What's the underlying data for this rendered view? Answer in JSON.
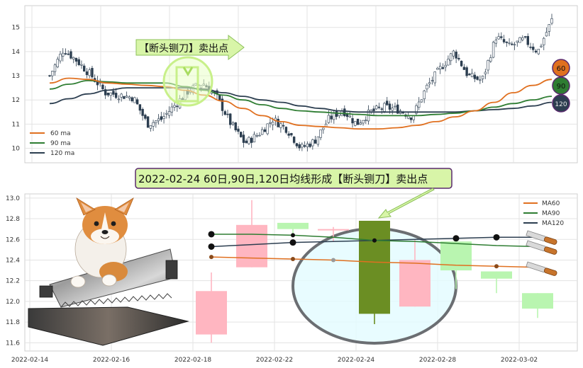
{
  "chart_data": [
    {
      "type": "candlestick",
      "panel": "overview",
      "yticks": [
        10,
        11,
        12,
        13,
        14,
        15
      ],
      "ylim": [
        9.4,
        15.9
      ],
      "grid": true,
      "legend_placement": "bottom-left",
      "series": [
        {
          "name": "60 ma",
          "color": "#e07020"
        },
        {
          "name": "90 ma",
          "color": "#2e7d32"
        },
        {
          "name": "120 ma",
          "color": "#2c3e50"
        }
      ],
      "ma_curves": {
        "ma60": [
          12.7,
          12.9,
          12.85,
          12.7,
          12.65,
          12.6,
          12.55,
          12.4,
          12.2,
          11.95,
          11.65,
          11.35,
          11.1,
          10.95,
          10.9,
          10.85,
          10.8,
          10.8,
          10.85,
          10.95,
          11.1,
          11.3,
          11.55,
          11.9,
          12.3,
          12.6,
          12.85
        ],
        "ma90": [
          12.45,
          12.65,
          12.8,
          12.75,
          12.7,
          12.7,
          12.7,
          12.55,
          12.4,
          12.2,
          12.0,
          11.8,
          11.65,
          11.55,
          11.5,
          11.45,
          11.4,
          11.35,
          11.35,
          11.35,
          11.4,
          11.45,
          11.55,
          11.7,
          11.85,
          12.0,
          12.15
        ],
        "ma120": [
          11.85,
          12.05,
          12.25,
          12.4,
          12.5,
          12.5,
          12.5,
          12.5,
          12.45,
          12.3,
          12.15,
          12.0,
          11.9,
          11.75,
          11.65,
          11.55,
          11.5,
          11.5,
          11.5,
          11.5,
          11.5,
          11.5,
          11.55,
          11.6,
          11.65,
          11.75,
          11.9
        ]
      },
      "close_path": [
        13.0,
        14.1,
        13.6,
        13.0,
        12.3,
        12.2,
        12.1,
        11.0,
        11.2,
        11.8,
        12.4,
        12.7,
        12.1,
        11.0,
        10.2,
        10.6,
        11.2,
        10.8,
        10.0,
        10.3,
        11.2,
        11.6,
        11.0,
        11.5,
        11.7,
        11.6,
        11.3,
        12.5,
        13.3,
        14.0,
        13.0,
        12.8,
        14.6,
        14.2,
        14.5,
        14.0,
        15.3
      ],
      "ma_badges": [
        "60",
        "90",
        "120"
      ],
      "annotation": "【断头铡刀】卖出点"
    },
    {
      "type": "candlestick",
      "panel": "detail",
      "title": "2022-02-24 60日,90日,120日均线形成【断头铡刀】卖出点",
      "categories": [
        "2022-02-14",
        "2022-02-16",
        "2022-02-18",
        "2022-02-22",
        "2022-02-24",
        "2022-02-28",
        "2022-03-02"
      ],
      "yticks": [
        11.6,
        11.8,
        12.0,
        12.2,
        12.4,
        12.6,
        12.8,
        13.0
      ],
      "ylim": [
        11.52,
        13.04
      ],
      "grid": true,
      "legend_placement": "top-right",
      "series": [
        {
          "name": "MA60",
          "color": "#e07020"
        },
        {
          "name": "MA90",
          "color": "#2e7d32"
        },
        {
          "name": "MA120",
          "color": "#2c3e50"
        }
      ],
      "candles": [
        {
          "date": "2022-02-18",
          "open": 11.68,
          "close": 12.1,
          "high": 12.28,
          "low": 11.6
        },
        {
          "date": "2022-02-21",
          "open": 12.33,
          "close": 12.74,
          "high": 12.98,
          "low": 12.33
        },
        {
          "date": "2022-02-22",
          "open": 12.76,
          "close": 12.7,
          "high": 12.76,
          "low": 12.62
        },
        {
          "date": "2022-02-23",
          "open": 12.7,
          "close": 12.7,
          "high": 12.72,
          "low": 12.58
        },
        {
          "date": "2022-02-24",
          "open": 12.78,
          "close": 11.88,
          "high": 12.78,
          "low": 11.78
        },
        {
          "date": "2022-02-25",
          "open": 11.95,
          "close": 12.4,
          "high": 12.6,
          "low": 11.95
        },
        {
          "date": "2022-02-28",
          "open": 12.58,
          "close": 12.3,
          "high": 12.58,
          "low": 12.12
        },
        {
          "date": "2022-03-01",
          "open": 12.29,
          "close": 12.22,
          "high": 12.29,
          "low": 12.08
        },
        {
          "date": "2022-03-02",
          "open": 12.08,
          "close": 11.93,
          "high": 12.08,
          "low": 11.84
        }
      ],
      "ma60": [
        12.43,
        12.42,
        12.41,
        12.4,
        12.38,
        12.37,
        12.35,
        12.34,
        12.33
      ],
      "ma90": [
        12.65,
        12.65,
        12.64,
        12.62,
        12.59,
        12.58,
        12.56,
        12.54,
        12.53
      ],
      "ma120": [
        12.53,
        12.55,
        12.57,
        12.58,
        12.59,
        12.6,
        12.61,
        12.62,
        12.62
      ]
    }
  ],
  "colors": {
    "up": "#ffb6c1",
    "down": "#b9f5b0",
    "highlight_down": "#6b8e23",
    "ma60": "#e07020",
    "ma90": "#2e7d32",
    "ma120": "#2c3e50",
    "grid": "#e3e3e3",
    "callout_bg": "#d8f5a8",
    "callout_border": "#5a2a6e"
  },
  "icons": [
    "corgi-dog-illustration",
    "guillotine-cutter-icon",
    "knife-icon"
  ]
}
